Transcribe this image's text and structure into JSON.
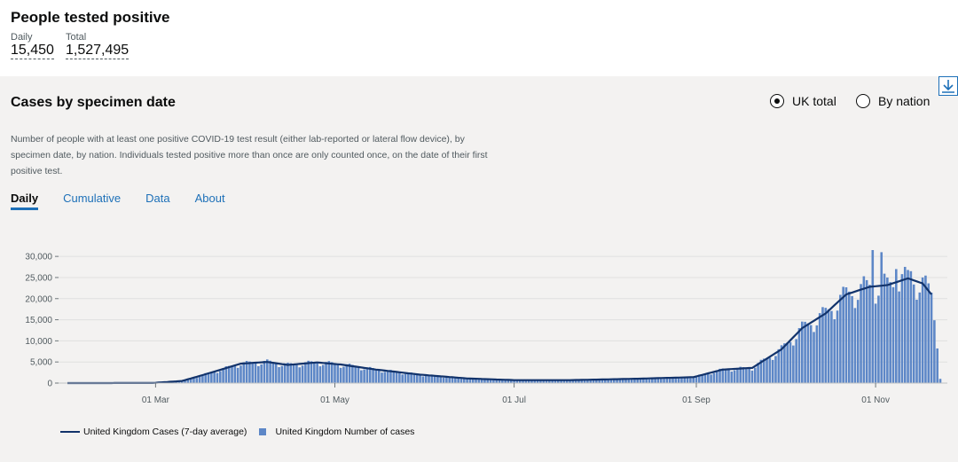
{
  "header": {
    "title": "People tested positive",
    "daily_label": "Daily",
    "daily_value": "15,450",
    "total_label": "Total",
    "total_value": "1,527,495"
  },
  "card": {
    "title": "Cases by specimen date",
    "radio_uk": "UK total",
    "radio_nation": "By nation",
    "selected": "UK total",
    "description": "Number of people with at least one positive COVID-19 test result (either lab-reported or lateral flow device), by specimen date, by nation. Individuals tested positive more than once are only counted once, on the date of their first positive test.",
    "tabs": [
      "Daily",
      "Cumulative",
      "Data",
      "About"
    ],
    "active_tab": "Daily"
  },
  "chart_data": {
    "type": "bar",
    "x_ticks": [
      "01 Mar",
      "01 May",
      "01 Jul",
      "01 Sep",
      "01 Nov"
    ],
    "y_ticks": [
      "0",
      "5,000",
      "10,000",
      "15,000",
      "20,000",
      "25,000",
      "30,000"
    ],
    "ylim": [
      0,
      32000
    ],
    "grid": true,
    "legend_position": "bottom-left",
    "series": [
      {
        "name": "United Kingdom Cases (7-day average)",
        "kind": "line",
        "color": "#12336b"
      },
      {
        "name": "United Kingdom Number of cases",
        "kind": "bar",
        "color": "#5d87c7"
      }
    ],
    "anchors": [
      [
        "2020-01-31",
        0
      ],
      [
        "2020-02-29",
        20
      ],
      [
        "2020-03-10",
        500
      ],
      [
        "2020-03-20",
        2500
      ],
      [
        "2020-03-30",
        4600
      ],
      [
        "2020-04-08",
        5000
      ],
      [
        "2020-04-15",
        4300
      ],
      [
        "2020-04-25",
        4900
      ],
      [
        "2020-05-03",
        4400
      ],
      [
        "2020-05-15",
        3200
      ],
      [
        "2020-05-30",
        2000
      ],
      [
        "2020-06-15",
        1100
      ],
      [
        "2020-07-01",
        700
      ],
      [
        "2020-07-20",
        700
      ],
      [
        "2020-08-10",
        1000
      ],
      [
        "2020-08-31",
        1400
      ],
      [
        "2020-09-10",
        3200
      ],
      [
        "2020-09-20",
        3600
      ],
      [
        "2020-09-30",
        8000
      ],
      [
        "2020-10-07",
        13000
      ],
      [
        "2020-10-15",
        16500
      ],
      [
        "2020-10-22",
        21000
      ],
      [
        "2020-10-30",
        22800
      ],
      [
        "2020-11-05",
        23200
      ],
      [
        "2020-11-12",
        24800
      ],
      [
        "2020-11-17",
        23600
      ],
      [
        "2020-11-20",
        21000
      ],
      [
        "2020-11-22",
        10000
      ],
      [
        "2020-11-23",
        1000
      ]
    ],
    "peaks": [
      [
        "2020-10-28",
        25300
      ],
      [
        "2020-10-31",
        31500
      ],
      [
        "2020-11-03",
        31000
      ],
      [
        "2020-11-05",
        25000
      ],
      [
        "2020-11-08",
        27000
      ],
      [
        "2020-11-13",
        26500
      ]
    ],
    "avg_end": "2020-11-20"
  }
}
